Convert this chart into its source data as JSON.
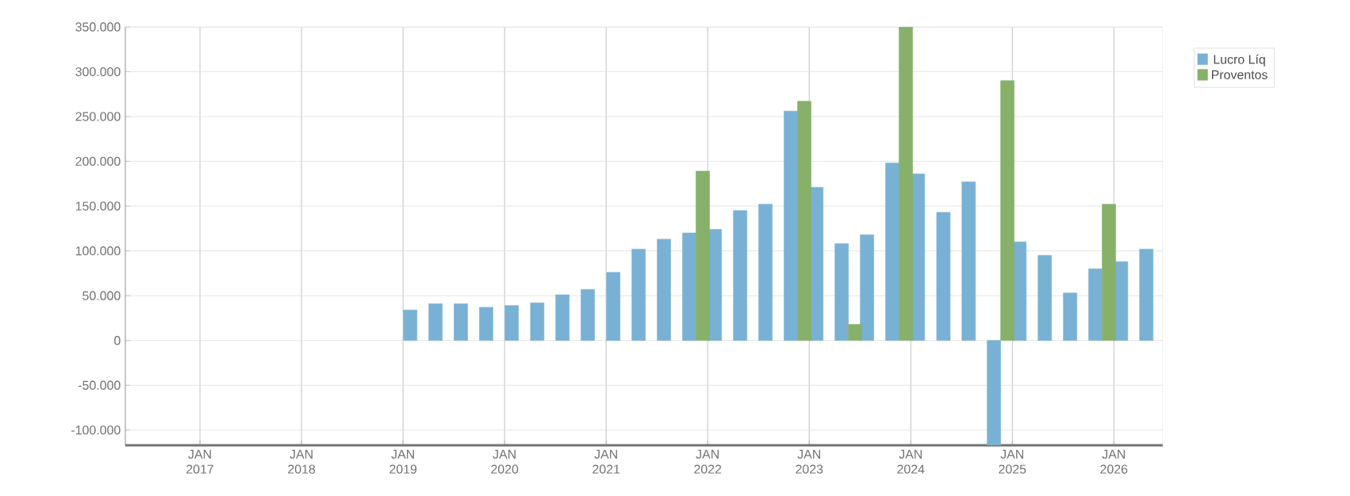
{
  "chart_data": {
    "type": "bar",
    "x": [
      "2019-02-20",
      "2019-05-22",
      "2019-08-21",
      "2019-11-20",
      "2020-02-20",
      "2020-05-22",
      "2020-08-21",
      "2020-11-20",
      "2021-02-20",
      "2021-05-22",
      "2021-08-21",
      "2021-11-20",
      "2022-02-20",
      "2022-05-22",
      "2022-08-21",
      "2022-11-20",
      "2023-02-20",
      "2023-05-22",
      "2023-08-21",
      "2023-11-20",
      "2024-02-20",
      "2024-05-22",
      "2024-08-21",
      "2024-11-20",
      "2025-02-20",
      "2025-05-22",
      "2025-08-21",
      "2025-11-20",
      "2026-02-20",
      "2026-05-22"
    ],
    "series": [
      {
        "name": "Lucro Líq",
        "color": "#78b1d4",
        "values": [
          34000,
          41000,
          41000,
          37000,
          39000,
          42000,
          51000,
          57000,
          76000,
          102000,
          113000,
          120000,
          124000,
          145000,
          152000,
          256000,
          171000,
          108000,
          118000,
          198000,
          186000,
          143000,
          177000,
          -117000,
          110000,
          95000,
          53000,
          80000,
          88000,
          102000
        ]
      },
      {
        "name": "Proventos",
        "color": "#87b06a",
        "values": [
          null,
          null,
          null,
          null,
          null,
          null,
          null,
          null,
          null,
          null,
          null,
          189000,
          null,
          null,
          null,
          267000,
          null,
          18000,
          null,
          350000,
          null,
          null,
          null,
          290000,
          null,
          null,
          null,
          152000,
          null,
          null
        ]
      }
    ],
    "xlim": [
      "2016-04-07",
      "2026-06-26"
    ],
    "xticks": [
      {
        "value": "2017-01-01",
        "label": "JAN 2017"
      },
      {
        "value": "2018-01-01",
        "label": "JAN 2018"
      },
      {
        "value": "2019-01-01",
        "label": "JAN 2019"
      },
      {
        "value": "2020-01-01",
        "label": "JAN 2020"
      },
      {
        "value": "2021-01-01",
        "label": "JAN 2021"
      },
      {
        "value": "2022-01-01",
        "label": "JAN 2022"
      },
      {
        "value": "2023-01-01",
        "label": "JAN 2023"
      },
      {
        "value": "2024-01-01",
        "label": "JAN 2024"
      },
      {
        "value": "2025-01-01",
        "label": "JAN 2025"
      },
      {
        "value": "2026-01-01",
        "label": "JAN 2026"
      }
    ],
    "ylim": [
      -117000,
      350000
    ],
    "yticks": [
      {
        "value": -100000,
        "label": "-100.000"
      },
      {
        "value": -50000,
        "label": "-50.000"
      },
      0,
      {
        "value": 50000,
        "label": "50.000"
      },
      {
        "value": 100000,
        "label": "100.000"
      },
      {
        "value": 150000,
        "label": "150.000"
      },
      {
        "value": 200000,
        "label": "200.000"
      },
      {
        "value": 250000,
        "label": "250.000"
      },
      {
        "value": 300000,
        "label": "300.000"
      },
      {
        "value": 350000,
        "label": "350.000"
      }
    ],
    "grid": true,
    "legend": "top right"
  }
}
